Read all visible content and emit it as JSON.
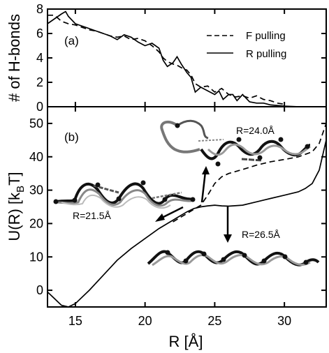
{
  "chart_data": [
    {
      "panel": "(a)",
      "type": "line",
      "ylabel": "# of H-bonds",
      "xlim": [
        13,
        33
      ],
      "ylim": [
        0,
        8
      ],
      "yticks": [
        "0",
        "2",
        "4",
        "6",
        "8"
      ],
      "series": [
        {
          "name": "F pulling",
          "style": "dashed",
          "x": [
            13,
            13.5,
            14,
            14.5,
            15,
            15.5,
            16,
            16.5,
            17,
            17.5,
            18,
            18.5,
            19,
            19.5,
            20,
            20.5,
            21,
            21.3,
            21.6,
            22,
            22.3,
            22.6,
            23,
            23.3,
            23.6,
            24,
            24.5,
            25,
            25.5,
            26,
            26.5,
            27,
            27.5,
            28,
            28.5,
            29,
            29.5,
            30
          ],
          "values": [
            7.5,
            7.5,
            7.0,
            6.8,
            6.7,
            6.5,
            6.3,
            6.2,
            6.0,
            5.8,
            5.7,
            5.8,
            5.5,
            5.6,
            5.4,
            5.0,
            4.5,
            4.0,
            3.7,
            3.5,
            3.4,
            3.2,
            3.0,
            2.6,
            1.9,
            1.6,
            1.7,
            1.2,
            1.5,
            1.0,
            0.8,
            0.9,
            0.7,
            0.9,
            0.6,
            0.5,
            0.3,
            0.2
          ]
        },
        {
          "name": "R pulling",
          "style": "solid",
          "x": [
            13,
            13.5,
            14,
            14.3,
            14.5,
            15,
            15.5,
            16,
            16.5,
            17,
            17.5,
            18,
            18.5,
            19,
            19.5,
            20,
            20.5,
            21,
            21.3,
            21.6,
            22,
            22.3,
            22.6,
            23,
            23.3,
            23.6,
            24,
            24.5,
            25,
            25.3,
            25.6,
            26,
            26.3,
            26.6,
            27,
            27.5,
            28,
            28.5,
            29,
            30,
            31,
            32
          ],
          "values": [
            6.8,
            7.2,
            7.6,
            7.8,
            7.4,
            6.8,
            6.6,
            6.4,
            6.2,
            6.0,
            5.8,
            5.5,
            5.9,
            5.7,
            5.3,
            5.0,
            5.2,
            4.8,
            3.8,
            3.3,
            3.6,
            4.1,
            3.5,
            2.8,
            2.4,
            1.2,
            1.6,
            1.3,
            1.0,
            1.3,
            0.6,
            1.0,
            1.0,
            0.5,
            1.0,
            0.4,
            0.3,
            0.3,
            0.15,
            0.05,
            0.0,
            0.0
          ]
        }
      ]
    },
    {
      "panel": "(b)",
      "type": "line",
      "xlabel": "R [Å]",
      "ylabel": "U(R)  [k",
      "ylabel_sub": "B",
      "ylabel_end": "T]",
      "xlim": [
        13,
        33
      ],
      "ylim": [
        -5,
        55
      ],
      "xticks": [
        "15",
        "20",
        "25",
        "30"
      ],
      "yticks": [
        "0",
        "10",
        "20",
        "30",
        "40",
        "50"
      ],
      "series": [
        {
          "name": "F pulling",
          "style": "dashed",
          "x": [
            22,
            23,
            24,
            24.5,
            25,
            25.5,
            26,
            27,
            28,
            29,
            30,
            31,
            32,
            32.5,
            33
          ],
          "values": [
            20.5,
            23,
            25.5,
            28.5,
            32,
            34,
            35,
            36.2,
            37.5,
            38.5,
            39.2,
            40,
            41.5,
            44,
            50
          ]
        },
        {
          "name": "R pulling",
          "style": "solid",
          "x": [
            13,
            13.5,
            14,
            14.5,
            15,
            16,
            17,
            18,
            19,
            20,
            21,
            22,
            23,
            23.5,
            24,
            24.5,
            25,
            25.5,
            26,
            27,
            28,
            29,
            30,
            31,
            31.5,
            32,
            32.5,
            33
          ],
          "values": [
            -0.5,
            -2.5,
            -4.5,
            -5,
            -4,
            0,
            4.5,
            9,
            12.5,
            15.5,
            18.5,
            21,
            23.5,
            24.5,
            25,
            25.3,
            25.5,
            25.3,
            25.2,
            25.5,
            26.5,
            27.5,
            28.5,
            29.5,
            30.5,
            32,
            36,
            45
          ]
        }
      ],
      "annotations": [
        "R=21.5Å",
        "R=24.0Å",
        "R=26.5Å"
      ]
    }
  ],
  "legend": [
    {
      "label": "F pulling",
      "style": "dashed"
    },
    {
      "label": "R pulling",
      "style": "solid"
    }
  ]
}
